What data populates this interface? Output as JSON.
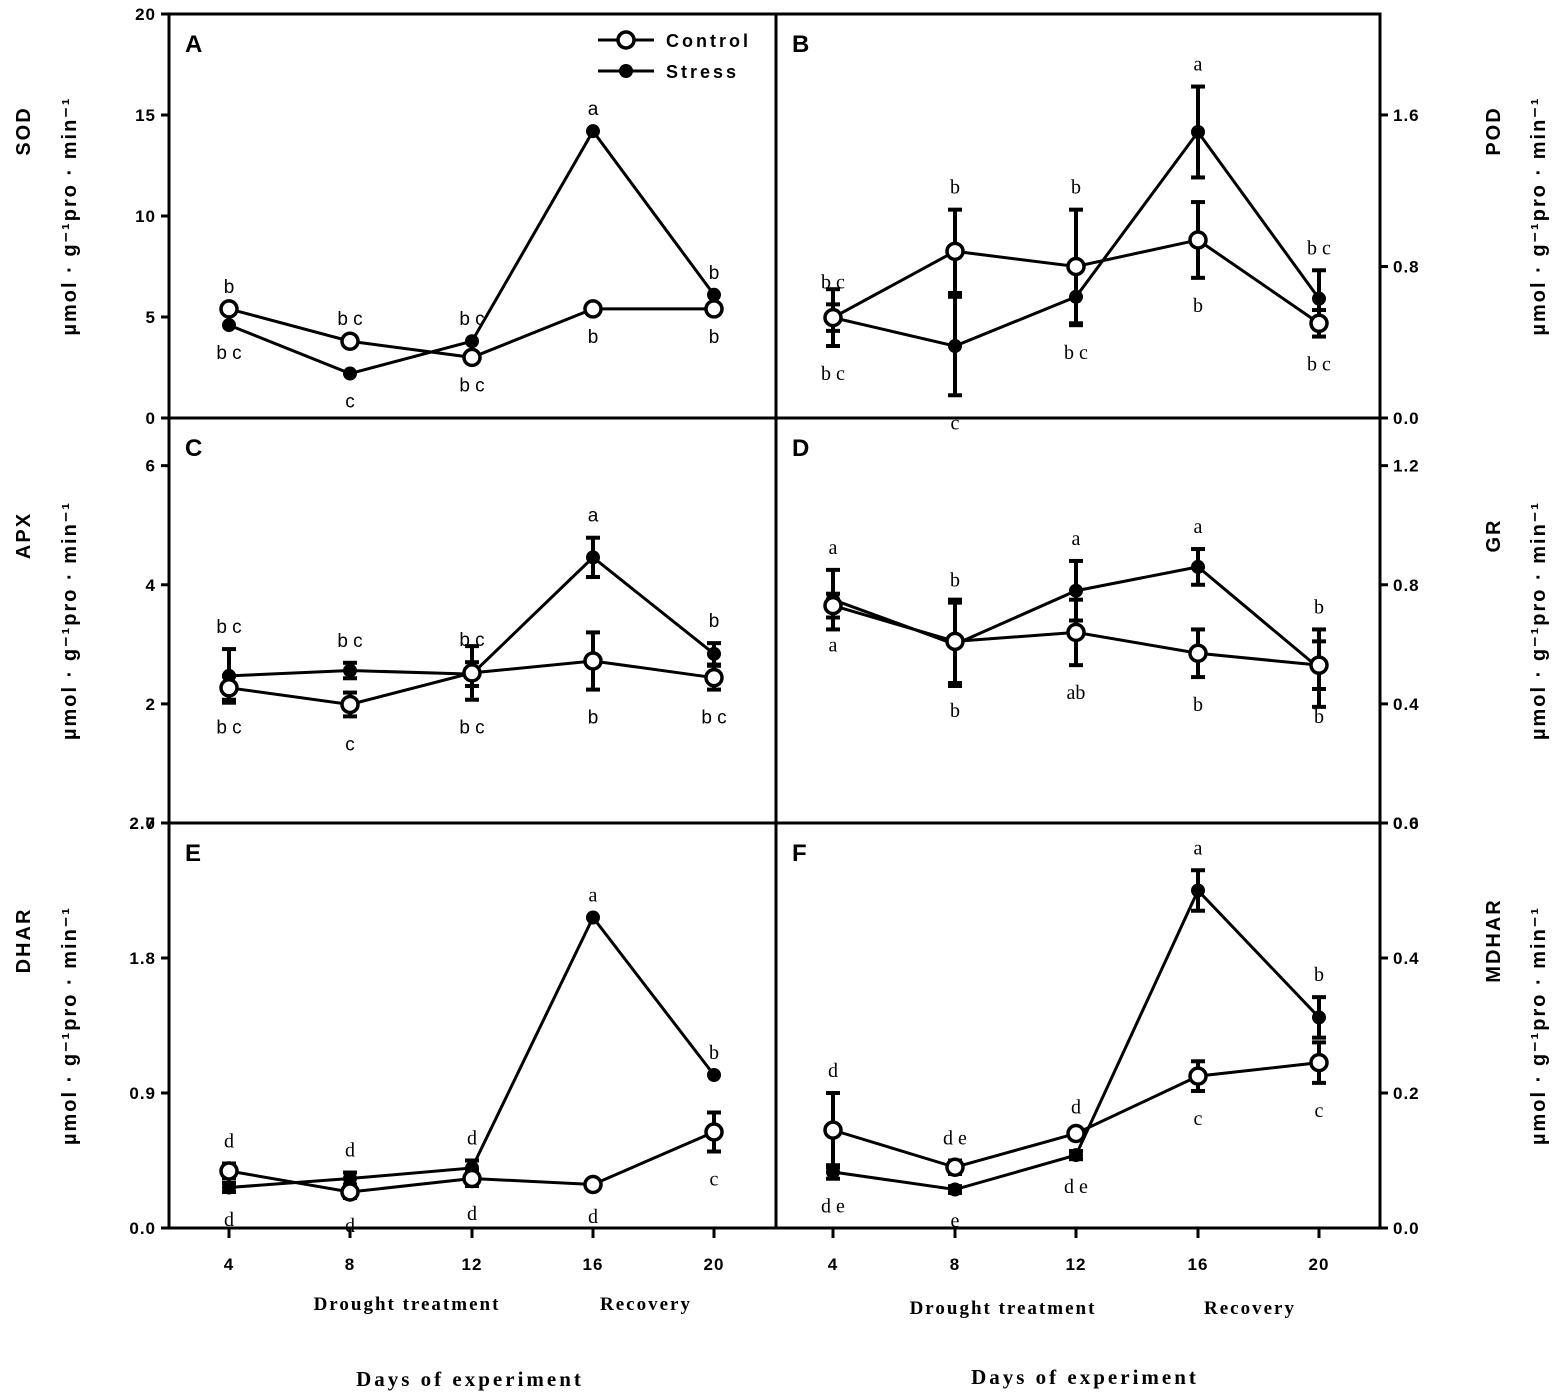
{
  "chart_data": [
    {
      "panel": "A",
      "type": "line",
      "ylim": [
        0,
        20
      ],
      "yticks": [
        "0",
        "5",
        "10",
        "15",
        "20"
      ],
      "ylabel_top": "SOD",
      "ylabel_bottom": "µmol · g⁻¹pro · min⁻¹",
      "x": [
        4,
        8,
        12,
        16,
        20
      ],
      "series": [
        {
          "name": "Control",
          "values": [
            5.4,
            3.8,
            3.0,
            5.4,
            5.4
          ],
          "err": [
            0,
            0,
            0,
            0,
            0
          ],
          "letters": [
            "b",
            "b c",
            "b c",
            "b",
            "b"
          ],
          "letter_pos": [
            "above",
            "above",
            "below",
            "below",
            "below"
          ]
        },
        {
          "name": "Stress",
          "values": [
            4.6,
            2.2,
            3.8,
            14.2,
            6.1
          ],
          "err": [
            0,
            0,
            0,
            0,
            0
          ],
          "letters": [
            "b c",
            "c",
            "b c",
            "a",
            "b"
          ],
          "letter_pos": [
            "below",
            "below",
            "above",
            "above",
            "above"
          ]
        }
      ]
    },
    {
      "panel": "B",
      "type": "line",
      "ylim": [
        0,
        2.133
      ],
      "yticks": [
        "0.0",
        "0.8",
        "1.6"
      ],
      "ytick_values": [
        0,
        0.8,
        1.6
      ],
      "ylabel_top": "POD",
      "ylabel_bottom": "µmol · g⁻¹pro · min⁻¹",
      "x": [
        4,
        8,
        12,
        16,
        20
      ],
      "series": [
        {
          "name": "Control",
          "values": [
            0.53,
            0.88,
            0.8,
            0.94,
            0.5
          ],
          "err": [
            0.07,
            0.22,
            0.3,
            0.2,
            0.07
          ],
          "letters": [
            "b c",
            "b",
            "b",
            "b",
            "b c"
          ],
          "letter_pos": [
            "above",
            "above",
            "above",
            "below",
            "below"
          ]
        },
        {
          "name": "Stress",
          "values": [
            0.53,
            0.38,
            0.64,
            1.51,
            0.63
          ],
          "err": [
            0.15,
            0.26,
            0.15,
            0.24,
            0.15
          ],
          "letters": [
            "b c",
            "c",
            "b c",
            "a",
            "b c"
          ],
          "letter_pos": [
            "below",
            "below",
            "below",
            "above",
            "above"
          ]
        }
      ]
    },
    {
      "panel": "C",
      "type": "line",
      "ylim": [
        0,
        6.8
      ],
      "yticks": [
        "0",
        "2",
        "4",
        "6"
      ],
      "ytick_values": [
        0,
        2,
        4,
        6
      ],
      "ylabel_top": "APX",
      "ylabel_bottom": "µmol · g⁻¹pro · min⁻¹",
      "x": [
        4,
        8,
        12,
        16,
        20
      ],
      "series": [
        {
          "name": "Control",
          "values": [
            2.27,
            1.99,
            2.52,
            2.72,
            2.44
          ],
          "err": [
            0.2,
            0.2,
            0.45,
            0.48,
            0.2
          ],
          "letters": [
            "b c",
            "c",
            "b c",
            "b",
            "b c"
          ],
          "letter_pos": [
            "below",
            "below",
            "below",
            "below",
            "below"
          ]
        },
        {
          "name": "Stress",
          "values": [
            2.47,
            2.56,
            2.5,
            4.46,
            2.84
          ],
          "err": [
            0.45,
            0.13,
            0.2,
            0.33,
            0.18
          ],
          "letters": [
            "b c",
            "b c",
            "b c",
            "a",
            "b"
          ],
          "letter_pos": [
            "above",
            "above",
            "above",
            "above",
            "above"
          ]
        }
      ]
    },
    {
      "panel": "D",
      "type": "line",
      "ylim": [
        0,
        1.36
      ],
      "yticks": [
        "0.0",
        "0.4",
        "0.8",
        "1.2"
      ],
      "ytick_values": [
        0,
        0.4,
        0.8,
        1.2
      ],
      "ylabel_top": "GR",
      "ylabel_bottom": "µmol · g⁻¹pro · min⁻¹",
      "x": [
        4,
        8,
        12,
        16,
        20
      ],
      "series": [
        {
          "name": "Control",
          "values": [
            0.73,
            0.61,
            0.64,
            0.57,
            0.53
          ],
          "err": [
            0.04,
            0.14,
            0.11,
            0.08,
            0.08
          ],
          "letters": [
            "a",
            "b",
            "ab",
            "b",
            "b"
          ],
          "letter_pos": [
            "below",
            "below",
            "below",
            "below",
            "below"
          ]
        },
        {
          "name": "Stress",
          "values": [
            0.75,
            0.6,
            0.78,
            0.86,
            0.52
          ],
          "err": [
            0.1,
            0.14,
            0.1,
            0.06,
            0.13
          ],
          "letters": [
            "a",
            "b",
            "a",
            "a",
            "b"
          ],
          "letter_pos": [
            "above",
            "above",
            "above",
            "above",
            "above"
          ]
        }
      ]
    },
    {
      "panel": "E",
      "type": "line",
      "ylim": [
        0,
        2.7
      ],
      "yticks": [
        "0.0",
        "0.9",
        "1.8",
        "2.7"
      ],
      "ytick_values": [
        0,
        0.9,
        1.8,
        2.7
      ],
      "ylabel_top": "DHAR",
      "ylabel_bottom": "µmol · g⁻¹pro · min⁻¹",
      "x": [
        4,
        8,
        12,
        16,
        20
      ],
      "series": [
        {
          "name": "Control",
          "values": [
            0.38,
            0.24,
            0.33,
            0.29,
            0.64
          ],
          "err": [
            0.05,
            0.04,
            0.05,
            0.03,
            0.13
          ],
          "letters": [
            "d",
            "d",
            "d",
            "d",
            "c"
          ],
          "letter_pos": [
            "above",
            "below",
            "below",
            "below",
            "below"
          ]
        },
        {
          "name": "Stress",
          "values": [
            0.27,
            0.33,
            0.4,
            2.07,
            1.02
          ],
          "err": [
            0.03,
            0.04,
            0.05,
            0,
            0
          ],
          "letters": [
            "d",
            "d",
            "d",
            "a",
            "b"
          ],
          "letter_pos": [
            "below",
            "above",
            "above",
            "above",
            "above"
          ]
        }
      ]
    },
    {
      "panel": "F",
      "type": "line",
      "ylim": [
        0,
        0.6
      ],
      "yticks": [
        "0.0",
        "0.2",
        "0.4",
        "0.6"
      ],
      "ytick_values": [
        0,
        0.2,
        0.4,
        0.6
      ],
      "ylabel_top": "MDHAR",
      "ylabel_bottom": "µmol · g⁻¹pro · min⁻¹",
      "x": [
        4,
        8,
        12,
        16,
        20
      ],
      "series": [
        {
          "name": "Control",
          "values": [
            0.145,
            0.09,
            0.14,
            0.225,
            0.245
          ],
          "err": [
            0.055,
            0.01,
            0.006,
            0.022,
            0.03
          ],
          "letters": [
            "d",
            "d e",
            "d",
            "c",
            "c"
          ],
          "letter_pos": [
            "above",
            "above",
            "above",
            "below",
            "below"
          ]
        },
        {
          "name": "Stress",
          "values": [
            0.083,
            0.057,
            0.108,
            0.5,
            0.312
          ],
          "err": [
            0.01,
            0.005,
            0.006,
            0.03,
            0.03
          ],
          "letters": [
            "d e",
            "e",
            "d e",
            "a",
            "b"
          ],
          "letter_pos": [
            "below",
            "below",
            "below",
            "above",
            "above"
          ]
        }
      ]
    }
  ],
  "legend": {
    "control_label": "Control",
    "stress_label": "Stress"
  },
  "x_ticks": [
    "4",
    "8",
    "12",
    "16",
    "20"
  ],
  "x_sublabels": {
    "drought": "Drought treatment",
    "recovery": "Recovery"
  },
  "x_title": "Days of experiment",
  "colors": {
    "line": "#000000",
    "background": "#ffffff"
  }
}
